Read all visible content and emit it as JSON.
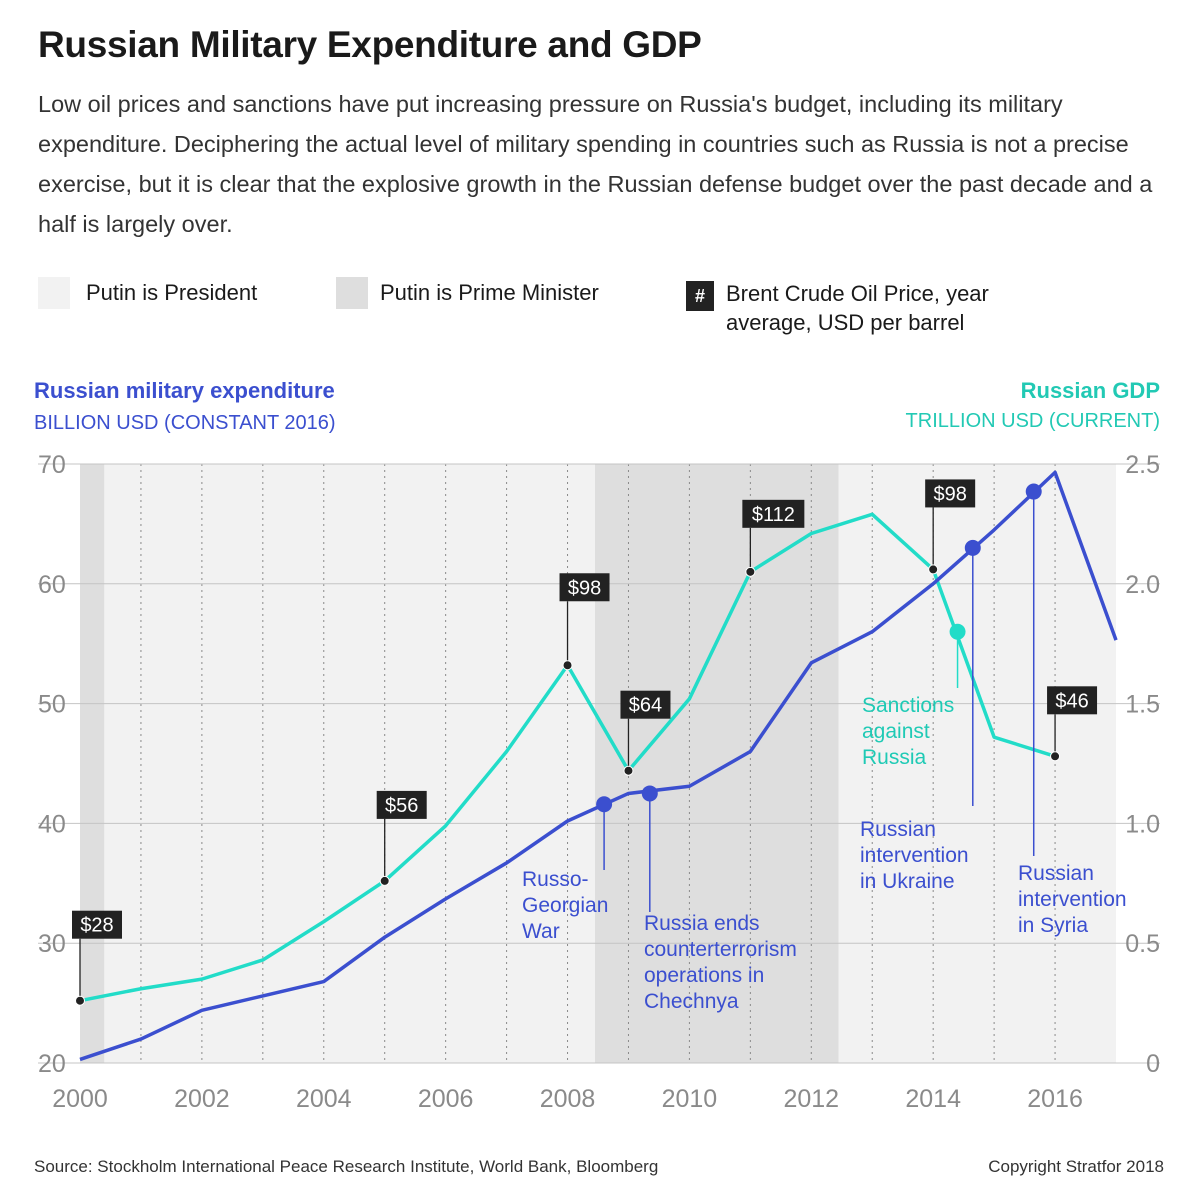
{
  "title": "Russian Military Expenditure and GDP",
  "subtitle": "Low oil prices and sanctions have put increasing pressure on Russia's budget, including its military expenditure. Deciphering the actual level of military spending in countries such as Russia is not a precise exercise, but it is clear that the explosive growth in the Russian defense budget over the past decade and a half is largely over.",
  "legend": {
    "president": "Putin is President",
    "prime_minister": "Putin is Prime Minister",
    "oil_symbol": "#",
    "oil_line1": "Brent Crude Oil Price, year",
    "oil_line2": "average, USD per barrel"
  },
  "left_axis": {
    "title": "Russian military expenditure",
    "unit": "BILLION USD (CONSTANT 2016)"
  },
  "right_axis": {
    "title": "Russian GDP",
    "unit": "TRILLION USD (CURRENT)"
  },
  "footer": {
    "source": "Source: Stockholm International Peace Research Institute, World Bank, Bloomberg",
    "copyright": "Copyright Stratfor 2018"
  },
  "colors": {
    "military": "#3b4fcf",
    "gdp": "#22dcc8",
    "president_band": "#f2f2f2",
    "pm_band": "#dedede",
    "oil_box": "#222222"
  },
  "chart_data": {
    "type": "line",
    "x_range": [
      2000,
      2017
    ],
    "x_ticks": [
      2000,
      2002,
      2004,
      2006,
      2008,
      2010,
      2012,
      2014,
      2016
    ],
    "y_left": {
      "range": [
        20,
        70
      ],
      "ticks": [
        20,
        30,
        40,
        50,
        60,
        70
      ]
    },
    "y_right": {
      "range": [
        0,
        2.5
      ],
      "ticks": [
        "0",
        "0.5",
        "1.0",
        "1.5",
        "2.0",
        "2.5"
      ]
    },
    "series": [
      {
        "name": "Russian military expenditure",
        "axis": "left",
        "unit": "billion USD (constant 2016)",
        "x": [
          2000,
          2001,
          2002,
          2003,
          2004,
          2005,
          2006,
          2007,
          2008,
          2009,
          2010,
          2011,
          2012,
          2013,
          2014,
          2015,
          2016,
          2017
        ],
        "values": [
          20.3,
          22.0,
          24.4,
          25.6,
          26.8,
          30.5,
          33.7,
          36.7,
          40.2,
          42.5,
          43.1,
          46.0,
          53.4,
          56.0,
          60.0,
          64.5,
          69.3,
          55.3
        ]
      },
      {
        "name": "Russian GDP",
        "axis": "right",
        "unit": "trillion USD (current)",
        "x": [
          2000,
          2001,
          2002,
          2003,
          2004,
          2005,
          2006,
          2007,
          2008,
          2009,
          2010,
          2011,
          2012,
          2013,
          2014,
          2015,
          2016
        ],
        "values": [
          0.26,
          0.31,
          0.35,
          0.43,
          0.59,
          0.76,
          0.99,
          1.3,
          1.66,
          1.22,
          1.52,
          2.05,
          2.21,
          2.29,
          2.06,
          1.36,
          1.28
        ]
      }
    ],
    "oil_prices": [
      {
        "year": 2000,
        "gdp": 0.26,
        "label": "$28"
      },
      {
        "year": 2005,
        "gdp": 0.76,
        "label": "$56"
      },
      {
        "year": 2008,
        "gdp": 1.66,
        "label": "$98"
      },
      {
        "year": 2009,
        "gdp": 1.22,
        "label": "$64"
      },
      {
        "year": 2011,
        "gdp": 2.05,
        "label": "$112"
      },
      {
        "year": 2014,
        "gdp": 2.06,
        "label": "$98"
      },
      {
        "year": 2016,
        "gdp": 1.28,
        "label": "$46"
      }
    ],
    "bands": [
      {
        "type": "pm",
        "from": 2000.0,
        "to": 2000.4
      },
      {
        "type": "president",
        "from": 2000.4,
        "to": 2008.45
      },
      {
        "type": "pm",
        "from": 2008.45,
        "to": 2012.45
      },
      {
        "type": "president",
        "from": 2012.45,
        "to": 2017.0
      }
    ],
    "events": [
      {
        "series": "military",
        "year": 2008.6,
        "value": 41.6,
        "lines": [
          "Russo-",
          "Georgian",
          "War"
        ]
      },
      {
        "series": "military",
        "year": 2009.35,
        "value": 42.5,
        "lines": [
          "Russia ends",
          "counterterrorism",
          "operations in",
          "Chechnya"
        ]
      },
      {
        "series": "gdp",
        "year": 2014.4,
        "value": 1.8,
        "lines": [
          "Sanctions",
          "against",
          "Russia"
        ]
      },
      {
        "series": "military",
        "year": 2014.65,
        "value": 63.0,
        "lines": [
          "Russian",
          "intervention",
          "in Ukraine"
        ]
      },
      {
        "series": "military",
        "year": 2015.65,
        "value": 67.7,
        "lines": [
          "Russian",
          "intervention",
          "in Syria"
        ]
      }
    ]
  }
}
